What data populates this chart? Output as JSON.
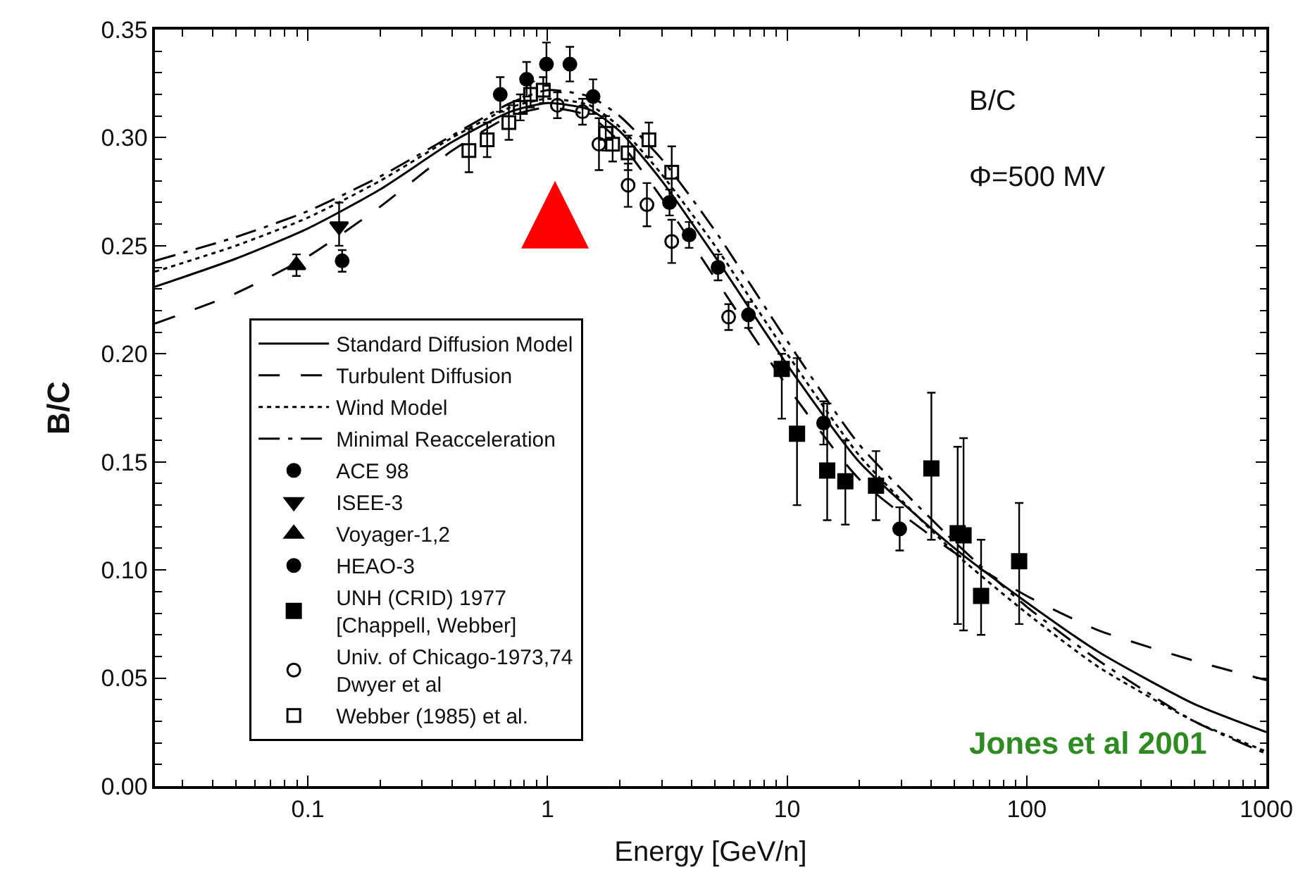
{
  "chart_data": {
    "type": "scatter",
    "xlabel": "Energy [GeV/n]",
    "ylabel": "B/C",
    "log": "x",
    "grid": false,
    "legend": "left",
    "xlim": [
      0.023,
      1000
    ],
    "xticks": [
      0.1,
      1,
      10,
      100,
      1000
    ],
    "ylim": [
      0,
      0.35
    ],
    "yticks": [
      {
        "value": 0,
        "label": "0.00"
      },
      {
        "value": 0.05,
        "label": "0.05"
      },
      {
        "value": 0.1,
        "label": "0.10"
      },
      {
        "value": 0.15,
        "label": "0.15"
      },
      {
        "value": 0.2,
        "label": "0.20"
      },
      {
        "value": 0.25,
        "label": "0.25"
      },
      {
        "value": 0.3,
        "label": "0.30"
      },
      {
        "value": 0.35,
        "label": "0.35"
      }
    ],
    "annotations": [
      "B/C",
      "Φ=500 MV",
      "Jones et al 2001"
    ],
    "x": [
      0.023,
      0.05,
      0.1,
      0.2,
      0.4,
      0.7,
      1,
      1.5,
      2,
      3,
      5,
      10,
      20,
      50,
      100,
      200,
      500,
      1000
    ],
    "series": [
      {
        "name": "Standard Diffusion Model",
        "type": "line",
        "line_style": "solid",
        "color": "#000000",
        "values": [
          0.231,
          0.244,
          0.258,
          0.276,
          0.298,
          0.312,
          0.316,
          0.313,
          0.303,
          0.28,
          0.245,
          0.195,
          0.15,
          0.11,
          0.085,
          0.062,
          0.038,
          0.025
        ]
      },
      {
        "name": "Turbulent Diffusion",
        "type": "line",
        "line_style": "dashed",
        "color": "#000000",
        "values": [
          0.214,
          0.228,
          0.245,
          0.268,
          0.294,
          0.31,
          0.314,
          0.31,
          0.298,
          0.272,
          0.235,
          0.185,
          0.142,
          0.108,
          0.088,
          0.072,
          0.058,
          0.049
        ]
      },
      {
        "name": "Wind Model",
        "type": "line",
        "line_style": "dotted",
        "color": "#000000",
        "values": [
          0.238,
          0.25,
          0.263,
          0.28,
          0.3,
          0.314,
          0.318,
          0.315,
          0.305,
          0.283,
          0.25,
          0.2,
          0.153,
          0.108,
          0.08,
          0.055,
          0.03,
          0.016
        ]
      },
      {
        "name": "Minimal Reacceleration",
        "type": "line",
        "line_style": "dashdot",
        "color": "#000000",
        "values": [
          0.243,
          0.254,
          0.266,
          0.282,
          0.301,
          0.316,
          0.322,
          0.319,
          0.31,
          0.29,
          0.257,
          0.206,
          0.158,
          0.113,
          0.083,
          0.058,
          0.03,
          0.015
        ]
      },
      {
        "name": "ACE 98",
        "marker": "circle",
        "color": "#000000",
        "x": [
          0.139
        ],
        "values": [
          0.243
        ],
        "errors": [
          0.005
        ]
      },
      {
        "name": "ISEE-3",
        "marker": "triangle-down",
        "color": "#000000",
        "x": [
          0.135
        ],
        "values": [
          0.259
        ],
        "errors": [
          [
            0.25,
            0.27
          ]
        ]
      },
      {
        "name": "Voyager-1,2",
        "marker": "triangle",
        "color": "#000000",
        "x": [
          0.0896
        ],
        "values": [
          0.241
        ],
        "errors": [
          0.005
        ]
      },
      {
        "name": "HEAO-3",
        "marker": "circle",
        "color": "#000000",
        "x": [
          0.635,
          0.818,
          0.99,
          1.24,
          1.55,
          3.23,
          3.9,
          5.15,
          6.9,
          14.2,
          29.5
        ],
        "values": [
          0.32,
          0.327,
          0.334,
          0.334,
          0.319,
          0.27,
          0.255,
          0.24,
          0.218,
          0.168,
          0.119
        ],
        "errors": [
          0.008,
          0.008,
          0.01,
          0.008,
          0.008,
          0.006,
          0.006,
          0.006,
          0.006,
          0.01,
          0.01
        ]
      },
      {
        "name": "UNH (CRID) 1977\n[Chappell, Webber]",
        "marker": "square",
        "color": "#000000",
        "x": [
          9.5,
          11,
          14.7,
          17.5,
          23.5,
          40,
          51.5,
          54.5,
          64.5,
          93
        ],
        "values": [
          0.193,
          0.163,
          0.146,
          0.141,
          0.139,
          0.147,
          0.117,
          0.116,
          0.088,
          0.104
        ],
        "errors": [
          [
            0.17,
            0.2
          ],
          [
            0.13,
            0.198
          ],
          [
            0.123,
            0.177
          ],
          [
            0.121,
            0.16
          ],
          [
            0.123,
            0.155
          ],
          [
            0.114,
            0.182
          ],
          [
            0.075,
            0.157
          ],
          [
            0.072,
            0.161
          ],
          [
            0.07,
            0.114
          ],
          [
            0.075,
            0.131
          ]
        ]
      },
      {
        "name": "Univ. of Chicago-1973,74\nDwyer et al",
        "marker": "circle-open",
        "color": "#000000",
        "x": [
          1.1,
          1.4,
          1.64,
          2.17,
          2.6,
          3.3,
          5.7
        ],
        "values": [
          0.315,
          0.312,
          0.297,
          0.278,
          0.269,
          0.252,
          0.217
        ],
        "errors": [
          0.006,
          0.006,
          0.012,
          0.01,
          0.01,
          0.01,
          0.006
        ]
      },
      {
        "name": "Webber (1985) et al.",
        "marker": "square-open",
        "color": "#000000",
        "x": [
          0.47,
          0.56,
          0.69,
          0.77,
          0.85,
          0.96,
          1.75,
          1.87,
          2.17,
          2.65,
          3.3
        ],
        "values": [
          0.294,
          0.299,
          0.307,
          0.314,
          0.32,
          0.322,
          0.302,
          0.297,
          0.293,
          0.299,
          0.284
        ],
        "errors": [
          0.01,
          0.008,
          0.008,
          0.006,
          0.006,
          0.006,
          0.008,
          0.008,
          0.008,
          0.008,
          0.012
        ]
      }
    ]
  }
}
